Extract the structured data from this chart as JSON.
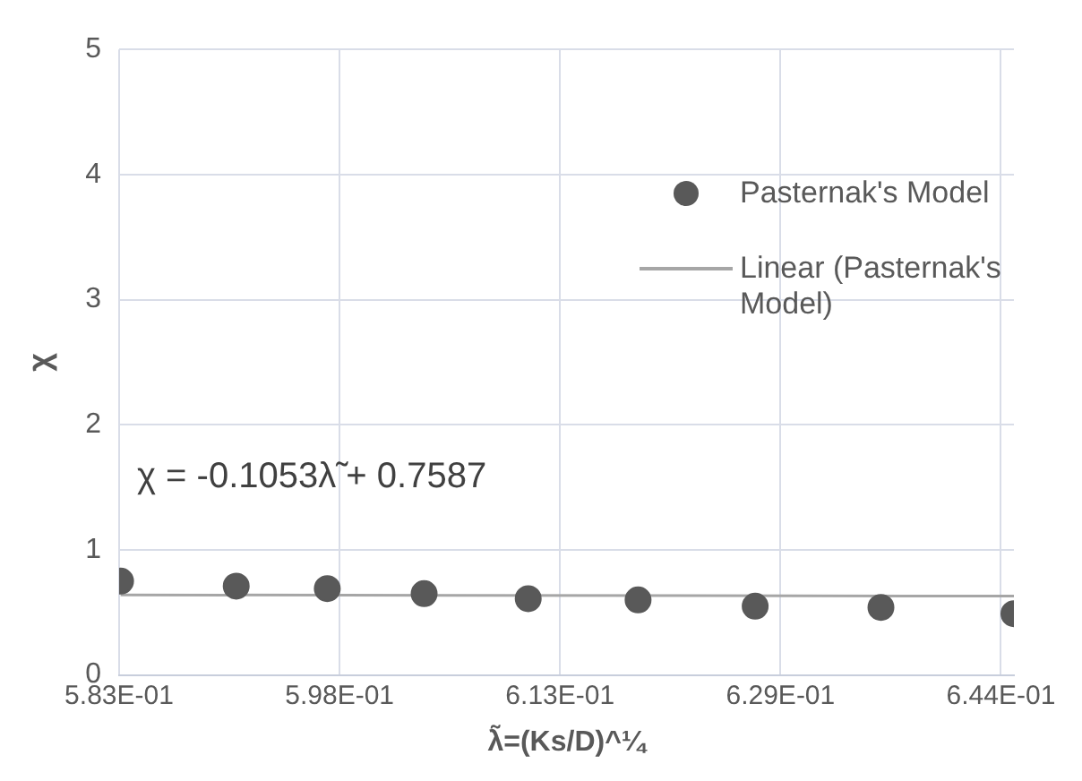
{
  "chart_data": {
    "type": "scatter",
    "xlabel": "λ̃=(Ks/D)^¼",
    "ylabel": "χ",
    "annotations": [
      "χ = -0.1053λ̃ + 0.7587"
    ],
    "xlim": [
      0.583,
      0.6449
    ],
    "xticks": [
      {
        "value": 0.583,
        "label": "5.83E-01"
      },
      {
        "value": 0.59825,
        "label": "5.98E-01"
      },
      {
        "value": 0.6135,
        "label": "6.13E-01"
      },
      {
        "value": 0.62875,
        "label": "6.29E-01"
      },
      {
        "value": 0.644,
        "label": "6.44E-01"
      }
    ],
    "ylim": [
      0,
      5
    ],
    "yticks": [
      0,
      1,
      2,
      3,
      4,
      5
    ],
    "grid": true,
    "legend": "right",
    "series": [
      {
        "name": "Pasternak's Model",
        "color": "#595959",
        "marker": "circle",
        "x": [
          0.5831,
          0.5911,
          0.5974,
          0.6041,
          0.6113,
          0.6189,
          0.627,
          0.6357,
          0.6449
        ],
        "values": [
          0.75,
          0.71,
          0.69,
          0.65,
          0.61,
          0.6,
          0.55,
          0.54,
          0.49
        ]
      },
      {
        "name": "Linear (Pasternak's Model)",
        "type": "line",
        "color": "#a6a6a6",
        "marker": "none",
        "x": [
          0.5831,
          0.6449
        ],
        "values": [
          0.64,
          0.63
        ]
      }
    ]
  }
}
